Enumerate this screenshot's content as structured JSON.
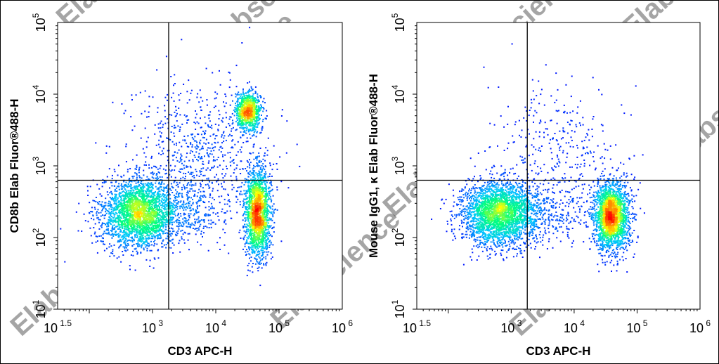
{
  "watermark": "Elabscience",
  "colors": {
    "density_low": "#0000ff",
    "density_mid1": "#00c8ff",
    "density_mid2": "#00ff80",
    "density_mid3": "#ffff00",
    "density_high": "#ff0000",
    "gate_line": "#000000"
  },
  "chart_data": [
    {
      "type": "scatter",
      "subtype": "flow-cytometry-density-plot",
      "xlabel": "CD3 APC-H",
      "ylabel": "CD8b Elab Fluor®488-H",
      "x_scale": "log",
      "y_scale": "log",
      "xlim": [
        31.6,
        1000000
      ],
      "ylim": [
        10,
        100000
      ],
      "x_ticks": [
        {
          "value": 31.6,
          "base": "10",
          "exp": "1.5"
        },
        {
          "value": 1000,
          "base": "10",
          "exp": "3"
        },
        {
          "value": 10000,
          "base": "10",
          "exp": "4"
        },
        {
          "value": 100000,
          "base": "10",
          "exp": "5"
        },
        {
          "value": 1000000,
          "base": "10",
          "exp": "6"
        }
      ],
      "y_ticks": [
        {
          "value": 10,
          "base": "10",
          "exp": "1"
        },
        {
          "value": 100,
          "base": "10",
          "exp": "2"
        },
        {
          "value": 1000,
          "base": "10",
          "exp": "3"
        },
        {
          "value": 10000,
          "base": "10",
          "exp": "4"
        },
        {
          "value": 100000,
          "base": "10",
          "exp": "5"
        }
      ],
      "quadrant_gate": {
        "x": 1800,
        "y": 630
      },
      "populations": [
        {
          "x": 600,
          "y": 220,
          "x_spread_dex": 0.3,
          "y_spread_dex": 0.24,
          "count": 2600
        },
        {
          "x": 45000,
          "y": 230,
          "x_spread_dex": 0.1,
          "y_spread_dex": 0.3,
          "count": 1900
        },
        {
          "x": 32000,
          "y": 5800,
          "x_spread_dex": 0.1,
          "y_spread_dex": 0.14,
          "count": 850
        },
        {
          "x": 5000,
          "y": 1500,
          "x_spread_dex": 0.55,
          "y_spread_dex": 0.5,
          "count": 700
        },
        {
          "x": 3000,
          "y": 250,
          "x_spread_dex": 0.4,
          "y_spread_dex": 0.22,
          "count": 350
        }
      ]
    },
    {
      "type": "scatter",
      "subtype": "flow-cytometry-density-plot",
      "xlabel": "CD3 APC-H",
      "ylabel": "Mouse IgG1, κ Elab Fluor®488-H",
      "x_scale": "log",
      "y_scale": "log",
      "xlim": [
        31.6,
        1000000
      ],
      "ylim": [
        10,
        100000
      ],
      "x_ticks": [
        {
          "value": 31.6,
          "base": "10",
          "exp": "1.5"
        },
        {
          "value": 1000,
          "base": "10",
          "exp": "3"
        },
        {
          "value": 10000,
          "base": "10",
          "exp": "4"
        },
        {
          "value": 100000,
          "base": "10",
          "exp": "5"
        },
        {
          "value": 1000000,
          "base": "10",
          "exp": "6"
        }
      ],
      "y_ticks": [
        {
          "value": 10,
          "base": "10",
          "exp": "1"
        },
        {
          "value": 100,
          "base": "10",
          "exp": "2"
        },
        {
          "value": 1000,
          "base": "10",
          "exp": "3"
        },
        {
          "value": 10000,
          "base": "10",
          "exp": "4"
        },
        {
          "value": 100000,
          "base": "10",
          "exp": "5"
        }
      ],
      "quadrant_gate": {
        "x": 1800,
        "y": 630
      },
      "populations": [
        {
          "x": 600,
          "y": 220,
          "x_spread_dex": 0.3,
          "y_spread_dex": 0.22,
          "count": 2700
        },
        {
          "x": 38000,
          "y": 200,
          "x_spread_dex": 0.14,
          "y_spread_dex": 0.24,
          "count": 2300
        },
        {
          "x": 5000,
          "y": 1500,
          "x_spread_dex": 0.55,
          "y_spread_dex": 0.45,
          "count": 350
        },
        {
          "x": 3000,
          "y": 230,
          "x_spread_dex": 0.4,
          "y_spread_dex": 0.2,
          "count": 350
        }
      ]
    }
  ]
}
